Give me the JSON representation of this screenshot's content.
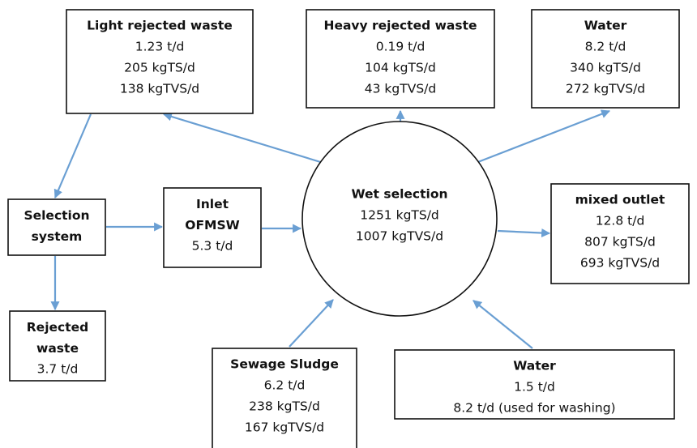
{
  "nodes": [
    {
      "title": "Light rejected waste",
      "lines": [
        "1.23 t/d",
        "205 kgTS/d",
        "138 kgTVS/d"
      ]
    },
    {
      "title": "Heavy rejected waste",
      "lines": [
        "0.19 t/d",
        "104 kgTS/d",
        "43 kgTVS/d"
      ]
    },
    {
      "title": "Water",
      "lines": [
        "8.2 t/d",
        "340 kgTS/d",
        "272 kgTVS/d"
      ]
    },
    {
      "title": "Selection system",
      "lines": []
    },
    {
      "title": "Inlet OFMSW",
      "lines": [
        "5.3 t/d"
      ]
    },
    {
      "title": "Wet selection",
      "lines": [
        "1251 kgTS/d",
        "1007 kgTVS/d"
      ]
    },
    {
      "title": "mixed outlet",
      "lines": [
        "12.8 t/d",
        "807 kgTS/d",
        "693 kgTVS/d"
      ]
    },
    {
      "title": "Rejected waste",
      "lines": [
        "3.7 t/d"
      ]
    },
    {
      "title": "Sewage Sludge",
      "lines": [
        "6.2 t/d",
        "238 kgTS/d",
        "167 kgTVS/d"
      ]
    },
    {
      "title": "Water",
      "lines": [
        "1.5 t/d",
        "8.2 t/d (used for washing)"
      ]
    }
  ]
}
